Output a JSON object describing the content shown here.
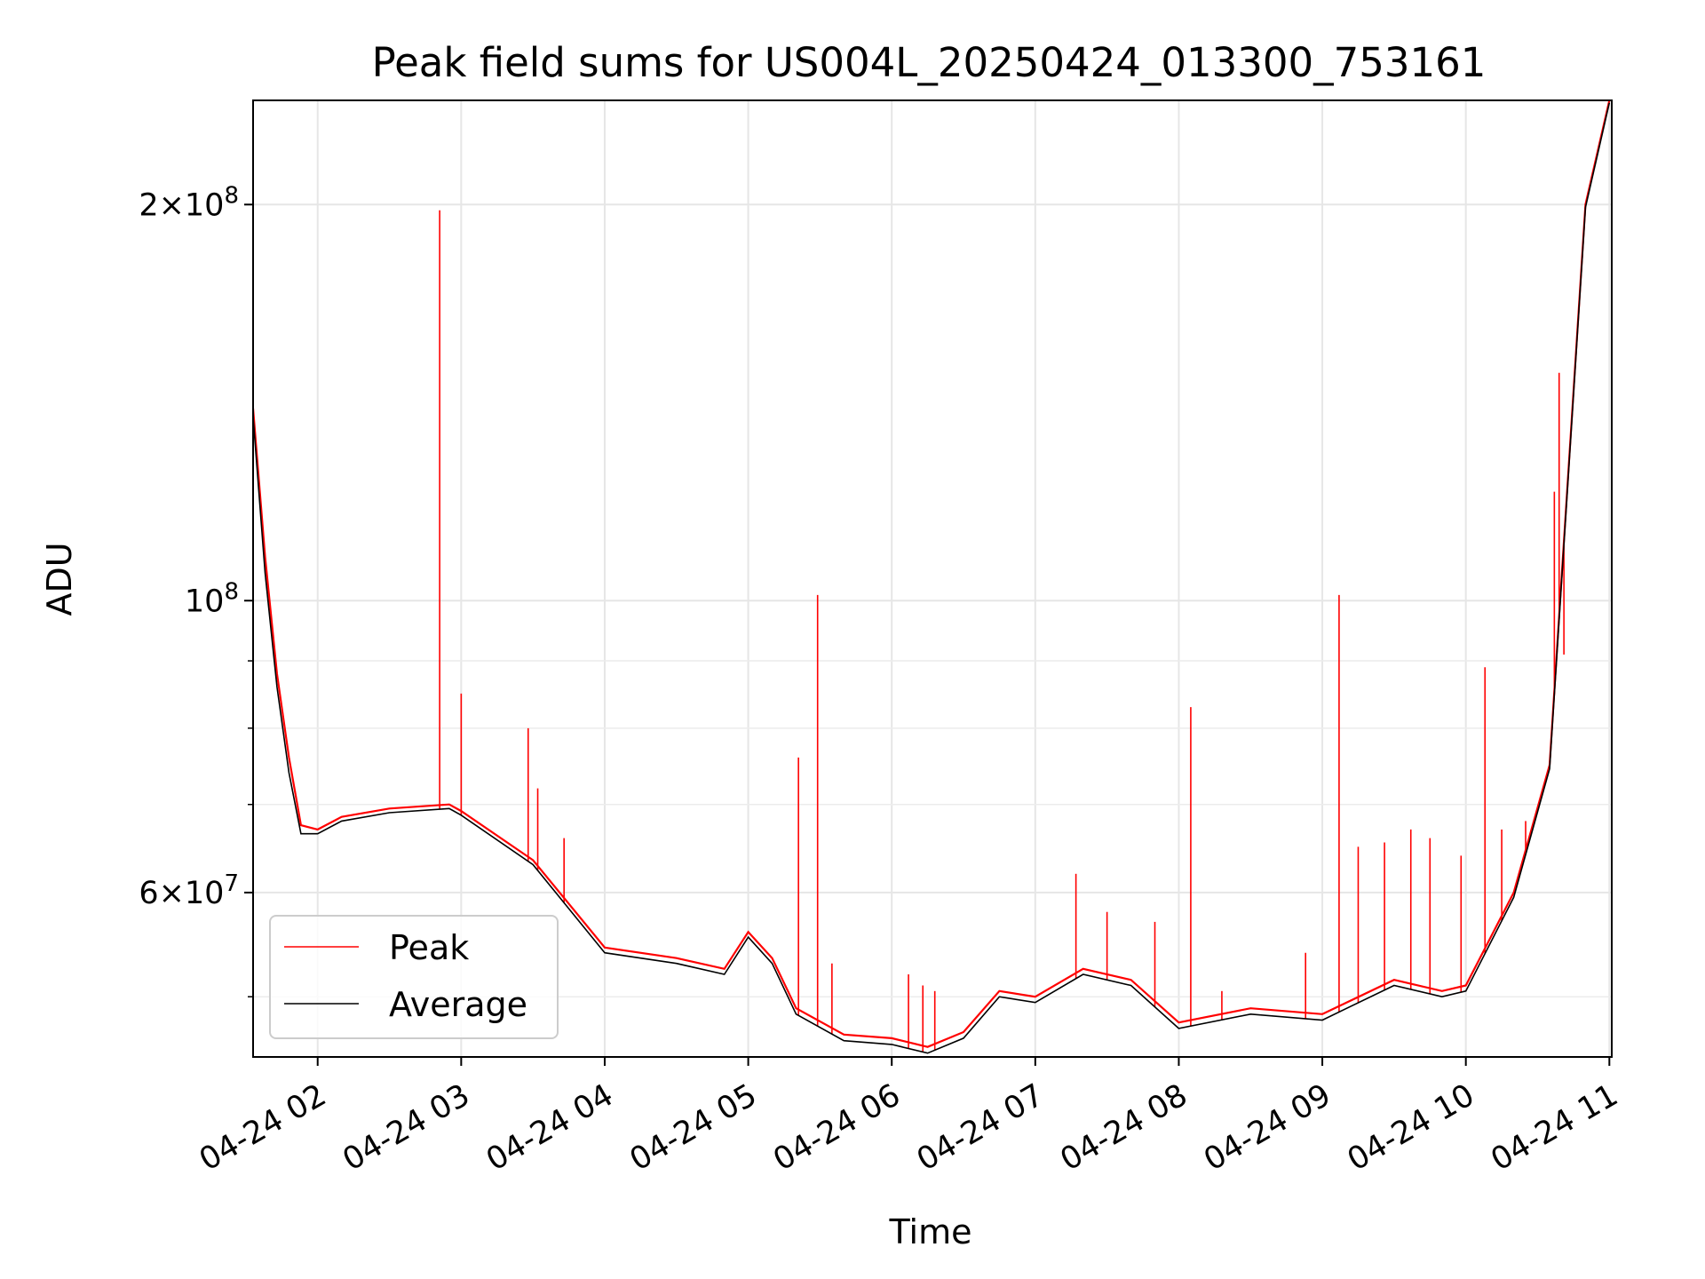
{
  "chart_data": {
    "type": "line",
    "title": "Peak field sums for US004L_20250424_013300_753161",
    "xlabel": "Time",
    "ylabel": "ADU",
    "yscale": "log",
    "grid": true,
    "legend_position": "lower-left",
    "xlim": [
      "2025-04-24 01:33",
      "2025-04-24 11:01"
    ],
    "ylim": [
      45000000,
      240000000
    ],
    "x_ticks": [
      {
        "value": "2025-04-24 02:00",
        "label": "04-24 02"
      },
      {
        "value": "2025-04-24 03:00",
        "label": "04-24 03"
      },
      {
        "value": "2025-04-24 04:00",
        "label": "04-24 04"
      },
      {
        "value": "2025-04-24 05:00",
        "label": "04-24 05"
      },
      {
        "value": "2025-04-24 06:00",
        "label": "04-24 06"
      },
      {
        "value": "2025-04-24 07:00",
        "label": "04-24 07"
      },
      {
        "value": "2025-04-24 08:00",
        "label": "04-24 08"
      },
      {
        "value": "2025-04-24 09:00",
        "label": "04-24 09"
      },
      {
        "value": "2025-04-24 10:00",
        "label": "04-24 10"
      },
      {
        "value": "2025-04-24 11:00",
        "label": "04-24 11"
      }
    ],
    "y_major_ticks": [
      {
        "value": 60000000,
        "mantissa": "6",
        "exponent": "7"
      },
      {
        "value": 100000000,
        "mantissa": "",
        "exponent": "8"
      },
      {
        "value": 200000000,
        "mantissa": "2",
        "exponent": "8"
      }
    ],
    "y_minor_ticks": [
      50000000,
      70000000,
      80000000,
      90000000
    ],
    "series": [
      {
        "name": "Peak",
        "color": "#ff0000",
        "points": [
          [
            "2025-04-24 01:33",
            140000000
          ],
          [
            "2025-04-24 01:38",
            108000000
          ],
          [
            "2025-04-24 01:43",
            88000000
          ],
          [
            "2025-04-24 01:48",
            76000000
          ],
          [
            "2025-04-24 01:53",
            67500000
          ],
          [
            "2025-04-24 02:00",
            67000000
          ],
          [
            "2025-04-24 02:10",
            68500000
          ],
          [
            "2025-04-24 02:30",
            69500000
          ],
          [
            "2025-04-24 02:55",
            70000000
          ],
          [
            "2025-04-24 03:00",
            69200000
          ],
          [
            "2025-04-24 03:30",
            63500000
          ],
          [
            "2025-04-24 04:00",
            54500000
          ],
          [
            "2025-04-24 04:30",
            53500000
          ],
          [
            "2025-04-24 04:50",
            52500000
          ],
          [
            "2025-04-24 05:00",
            56000000
          ],
          [
            "2025-04-24 05:10",
            53500000
          ],
          [
            "2025-04-24 05:20",
            49000000
          ],
          [
            "2025-04-24 05:40",
            46800000
          ],
          [
            "2025-04-24 06:00",
            46500000
          ],
          [
            "2025-04-24 06:15",
            45800000
          ],
          [
            "2025-04-24 06:30",
            47000000
          ],
          [
            "2025-04-24 06:45",
            50500000
          ],
          [
            "2025-04-24 07:00",
            50000000
          ],
          [
            "2025-04-24 07:20",
            52500000
          ],
          [
            "2025-04-24 07:40",
            51500000
          ],
          [
            "2025-04-24 08:00",
            47800000
          ],
          [
            "2025-04-24 08:30",
            49000000
          ],
          [
            "2025-04-24 09:00",
            48500000
          ],
          [
            "2025-04-24 09:30",
            51500000
          ],
          [
            "2025-04-24 09:50",
            50500000
          ],
          [
            "2025-04-24 10:00",
            51000000
          ],
          [
            "2025-04-24 10:20",
            60000000
          ],
          [
            "2025-04-24 10:35",
            75000000
          ],
          [
            "2025-04-24 10:50",
            200000000
          ],
          [
            "2025-04-24 11:00",
            240000000
          ]
        ],
        "spikes": [
          [
            "2025-04-24 02:51",
            198000000
          ],
          [
            "2025-04-24 03:00",
            85000000
          ],
          [
            "2025-04-24 03:28",
            80000000
          ],
          [
            "2025-04-24 03:32",
            72000000
          ],
          [
            "2025-04-24 03:43",
            66000000
          ],
          [
            "2025-04-24 05:21",
            76000000
          ],
          [
            "2025-04-24 05:29",
            101000000
          ],
          [
            "2025-04-24 05:35",
            53000000
          ],
          [
            "2025-04-24 06:07",
            52000000
          ],
          [
            "2025-04-24 06:13",
            51000000
          ],
          [
            "2025-04-24 06:18",
            50500000
          ],
          [
            "2025-04-24 07:17",
            62000000
          ],
          [
            "2025-04-24 07:30",
            58000000
          ],
          [
            "2025-04-24 07:50",
            57000000
          ],
          [
            "2025-04-24 08:05",
            83000000
          ],
          [
            "2025-04-24 08:18",
            50500000
          ],
          [
            "2025-04-24 08:53",
            54000000
          ],
          [
            "2025-04-24 09:07",
            101000000
          ],
          [
            "2025-04-24 09:15",
            65000000
          ],
          [
            "2025-04-24 09:26",
            65500000
          ],
          [
            "2025-04-24 09:37",
            67000000
          ],
          [
            "2025-04-24 09:45",
            66000000
          ],
          [
            "2025-04-24 09:58",
            64000000
          ],
          [
            "2025-04-24 10:08",
            89000000
          ],
          [
            "2025-04-24 10:15",
            67000000
          ],
          [
            "2025-04-24 10:25",
            68000000
          ],
          [
            "2025-04-24 10:37",
            121000000
          ],
          [
            "2025-04-24 10:39",
            149000000
          ],
          [
            "2025-04-24 10:41",
            91000000
          ]
        ]
      },
      {
        "name": "Average",
        "color": "#000000",
        "points": [
          [
            "2025-04-24 01:33",
            138000000
          ],
          [
            "2025-04-24 01:38",
            105000000
          ],
          [
            "2025-04-24 01:43",
            86000000
          ],
          [
            "2025-04-24 01:48",
            74000000
          ],
          [
            "2025-04-24 01:53",
            66500000
          ],
          [
            "2025-04-24 02:00",
            66500000
          ],
          [
            "2025-04-24 02:10",
            68000000
          ],
          [
            "2025-04-24 02:30",
            69000000
          ],
          [
            "2025-04-24 02:55",
            69500000
          ],
          [
            "2025-04-24 03:00",
            68700000
          ],
          [
            "2025-04-24 03:30",
            63000000
          ],
          [
            "2025-04-24 04:00",
            54000000
          ],
          [
            "2025-04-24 04:30",
            53000000
          ],
          [
            "2025-04-24 04:50",
            52000000
          ],
          [
            "2025-04-24 05:00",
            55500000
          ],
          [
            "2025-04-24 05:10",
            53000000
          ],
          [
            "2025-04-24 05:20",
            48500000
          ],
          [
            "2025-04-24 05:40",
            46300000
          ],
          [
            "2025-04-24 06:00",
            46000000
          ],
          [
            "2025-04-24 06:15",
            45300000
          ],
          [
            "2025-04-24 06:30",
            46500000
          ],
          [
            "2025-04-24 06:45",
            50000000
          ],
          [
            "2025-04-24 07:00",
            49500000
          ],
          [
            "2025-04-24 07:20",
            52000000
          ],
          [
            "2025-04-24 07:40",
            51000000
          ],
          [
            "2025-04-24 08:00",
            47300000
          ],
          [
            "2025-04-24 08:30",
            48500000
          ],
          [
            "2025-04-24 09:00",
            48000000
          ],
          [
            "2025-04-24 09:30",
            51000000
          ],
          [
            "2025-04-24 09:50",
            50000000
          ],
          [
            "2025-04-24 10:00",
            50500000
          ],
          [
            "2025-04-24 10:20",
            59500000
          ],
          [
            "2025-04-24 10:35",
            74500000
          ],
          [
            "2025-04-24 10:50",
            199000000
          ],
          [
            "2025-04-24 11:00",
            239000000
          ]
        ]
      }
    ]
  }
}
